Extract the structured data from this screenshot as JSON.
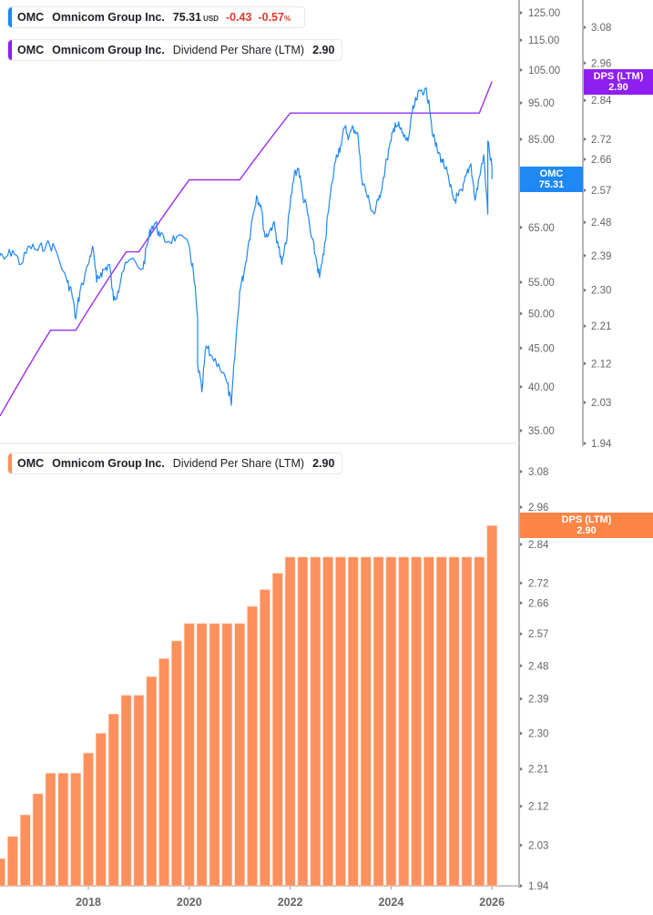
{
  "legend_price": {
    "ticker": "OMC",
    "name": "Omnicom Group Inc.",
    "price": "75.31",
    "unit": "USD",
    "change": "-0.43",
    "change_pct": "-0.57",
    "pct_sign": "%"
  },
  "legend_dps_top": {
    "ticker": "OMC",
    "name": "Omnicom Group Inc.",
    "metric": "Dividend Per Share (LTM)",
    "value": "2.90"
  },
  "legend_dps_bottom": {
    "ticker": "OMC",
    "name": "Omnicom Group Inc.",
    "metric": "Dividend Per Share (LTM)",
    "value": "2.90"
  },
  "badges": {
    "price": {
      "line1": "OMC",
      "line2": "75.31"
    },
    "dps_top": {
      "line1": "DPS (LTM)",
      "line2": "2.90"
    },
    "dps_bottom": {
      "line1": "DPS (LTM)",
      "line2": "2.90"
    }
  },
  "colors": {
    "price": "#1e88f5",
    "dps_line": "#9b2ef5",
    "dps_bars": "#fd905c",
    "dps_badge": "#ff8547",
    "price_badge": "#1e88f5",
    "dps_badge_top": "#8f1ff0",
    "negative": "#e0372b"
  },
  "chart_data": [
    {
      "type": "line",
      "scale": "log",
      "price_axis": {
        "ticks": [
          "125.00",
          "115.00",
          "105.00",
          "95.00",
          "85.00",
          "75.00",
          "65.00",
          "55.00",
          "50.00",
          "45.00",
          "40.00",
          "35.00"
        ],
        "range": [
          35,
          125
        ]
      },
      "dps_axis": {
        "ticks": [
          "3.08",
          "2.96",
          "2.84",
          "2.72",
          "2.66",
          "2.57",
          "2.48",
          "2.39",
          "2.30",
          "2.21",
          "2.12",
          "2.03",
          "1.94"
        ],
        "range": [
          1.94,
          3.08
        ]
      },
      "series": [
        {
          "name": "OMC",
          "axis": "price",
          "points": [
            [
              "2016-03",
              59.8
            ],
            [
              "2016-05",
              59.0
            ],
            [
              "2016-07",
              60.6
            ],
            [
              "2016-09",
              58.1
            ],
            [
              "2016-11",
              61.4
            ],
            [
              "2017-01",
              60.6
            ],
            [
              "2017-03",
              61.8
            ],
            [
              "2017-05",
              61.1
            ],
            [
              "2017-08",
              55.0
            ],
            [
              "2017-09",
              53.5
            ],
            [
              "2017-10",
              49.2
            ],
            [
              "2017-11",
              53.5
            ],
            [
              "2018-01",
              58.1
            ],
            [
              "2018-02",
              61.4
            ],
            [
              "2018-03",
              55.0
            ],
            [
              "2018-04",
              56.6
            ],
            [
              "2018-05",
              57.3
            ],
            [
              "2018-06",
              58.1
            ],
            [
              "2018-07",
              52.0
            ],
            [
              "2018-08",
              53.5
            ],
            [
              "2018-09",
              56.6
            ],
            [
              "2018-11",
              59.0
            ],
            [
              "2019-02",
              57.3
            ],
            [
              "2019-03",
              61.8
            ],
            [
              "2019-04",
              65.0
            ],
            [
              "2019-05",
              65.9
            ],
            [
              "2019-06",
              63.2
            ],
            [
              "2019-08",
              62.3
            ],
            [
              "2019-10",
              63.2
            ],
            [
              "2020-01",
              61.4
            ],
            [
              "2020-02",
              56.6
            ],
            [
              "2020-03",
              49.2
            ],
            [
              "2020-03",
              42.9
            ],
            [
              "2020-04",
              39.4
            ],
            [
              "2020-05",
              45.3
            ],
            [
              "2020-06",
              44.1
            ],
            [
              "2020-08",
              42.9
            ],
            [
              "2020-10",
              40.5
            ],
            [
              "2020-11",
              37.8
            ],
            [
              "2020-12",
              45.3
            ],
            [
              "2021-01",
              53.5
            ],
            [
              "2021-02",
              56.6
            ],
            [
              "2021-03",
              61.4
            ],
            [
              "2021-04",
              66.8
            ],
            [
              "2021-05",
              71.6
            ],
            [
              "2021-06",
              69.6
            ],
            [
              "2021-07",
              63.2
            ],
            [
              "2021-08",
              64.1
            ],
            [
              "2021-09",
              65.9
            ],
            [
              "2021-10",
              62.3
            ],
            [
              "2021-11",
              58.1
            ],
            [
              "2021-12",
              61.8
            ],
            [
              "2022-01",
              69.6
            ],
            [
              "2022-02",
              76.7
            ],
            [
              "2022-03",
              77.8
            ],
            [
              "2022-04",
              71.6
            ],
            [
              "2022-05",
              68.7
            ],
            [
              "2022-06",
              63.2
            ],
            [
              "2022-07",
              59.8
            ],
            [
              "2022-08",
              55.8
            ],
            [
              "2022-09",
              59.8
            ],
            [
              "2022-10",
              67.7
            ],
            [
              "2022-11",
              74.6
            ],
            [
              "2022-12",
              81.1
            ],
            [
              "2023-01",
              83.4
            ],
            [
              "2023-02",
              88.1
            ],
            [
              "2023-03",
              85.7
            ],
            [
              "2023-04",
              88.1
            ],
            [
              "2023-05",
              86.9
            ],
            [
              "2023-06",
              75.7
            ],
            [
              "2023-07",
              72.6
            ],
            [
              "2023-08",
              69.6
            ],
            [
              "2023-09",
              67.7
            ],
            [
              "2023-10",
              70.6
            ],
            [
              "2023-11",
              74.6
            ],
            [
              "2023-12",
              80.0
            ],
            [
              "2024-01",
              84.5
            ],
            [
              "2024-02",
              89.4
            ],
            [
              "2024-03",
              88.1
            ],
            [
              "2024-04",
              85.7
            ],
            [
              "2024-05",
              84.5
            ],
            [
              "2024-06",
              91.9
            ],
            [
              "2024-07",
              95.8
            ],
            [
              "2024-08",
              98.5
            ],
            [
              "2024-09",
              99.0
            ],
            [
              "2024-10",
              95.8
            ],
            [
              "2024-11",
              85.7
            ],
            [
              "2024-12",
              82.2
            ],
            [
              "2025-01",
              80.0
            ],
            [
              "2025-02",
              77.8
            ],
            [
              "2025-03",
              73.6
            ],
            [
              "2025-04",
              70.6
            ],
            [
              "2025-05",
              71.6
            ],
            [
              "2025-06",
              72.6
            ],
            [
              "2025-07",
              76.7
            ],
            [
              "2025-08",
              78.9
            ],
            [
              "2025-09",
              70.6
            ],
            [
              "2025-10",
              75.7
            ],
            [
              "2025-11",
              81.1
            ],
            [
              "2025-12",
              67.7
            ],
            [
              "2025-12",
              84.5
            ],
            [
              "2026-01",
              77.8
            ],
            [
              "2026-01",
              75.31
            ]
          ]
        },
        {
          "name": "DPS (LTM)",
          "axis": "dps",
          "source": "dps_quarterly"
        }
      ]
    },
    {
      "type": "bar",
      "scale": "log",
      "y_axis": {
        "ticks": [
          "3.08",
          "2.96",
          "2.84",
          "2.72",
          "2.66",
          "2.57",
          "2.48",
          "2.39",
          "2.30",
          "2.21",
          "2.12",
          "2.03",
          "1.94"
        ],
        "range": [
          1.94,
          3.08
        ]
      },
      "x_ticks": [
        "2018",
        "2020",
        "2022",
        "2024",
        "2026"
      ],
      "series": [
        {
          "name": "DPS (LTM)",
          "id": "dps_quarterly",
          "points": [
            [
              "2016-04",
              2.0
            ],
            [
              "2016-07",
              2.05
            ],
            [
              "2016-10",
              2.1
            ],
            [
              "2017-01",
              2.15
            ],
            [
              "2017-04",
              2.2
            ],
            [
              "2017-07",
              2.2
            ],
            [
              "2017-10",
              2.2
            ],
            [
              "2018-01",
              2.25
            ],
            [
              "2018-04",
              2.3
            ],
            [
              "2018-07",
              2.35
            ],
            [
              "2018-10",
              2.4
            ],
            [
              "2019-01",
              2.4
            ],
            [
              "2019-04",
              2.45
            ],
            [
              "2019-07",
              2.5
            ],
            [
              "2019-10",
              2.55
            ],
            [
              "2020-01",
              2.6
            ],
            [
              "2020-04",
              2.6
            ],
            [
              "2020-07",
              2.6
            ],
            [
              "2020-10",
              2.6
            ],
            [
              "2021-01",
              2.6
            ],
            [
              "2021-04",
              2.65
            ],
            [
              "2021-07",
              2.7
            ],
            [
              "2021-10",
              2.75
            ],
            [
              "2022-01",
              2.8
            ],
            [
              "2022-04",
              2.8
            ],
            [
              "2022-07",
              2.8
            ],
            [
              "2022-10",
              2.8
            ],
            [
              "2023-01",
              2.8
            ],
            [
              "2023-04",
              2.8
            ],
            [
              "2023-07",
              2.8
            ],
            [
              "2023-10",
              2.8
            ],
            [
              "2024-01",
              2.8
            ],
            [
              "2024-04",
              2.8
            ],
            [
              "2024-07",
              2.8
            ],
            [
              "2024-10",
              2.8
            ],
            [
              "2025-01",
              2.8
            ],
            [
              "2025-04",
              2.8
            ],
            [
              "2025-07",
              2.8
            ],
            [
              "2025-10",
              2.8
            ],
            [
              "2026-01",
              2.9
            ]
          ]
        }
      ]
    }
  ]
}
